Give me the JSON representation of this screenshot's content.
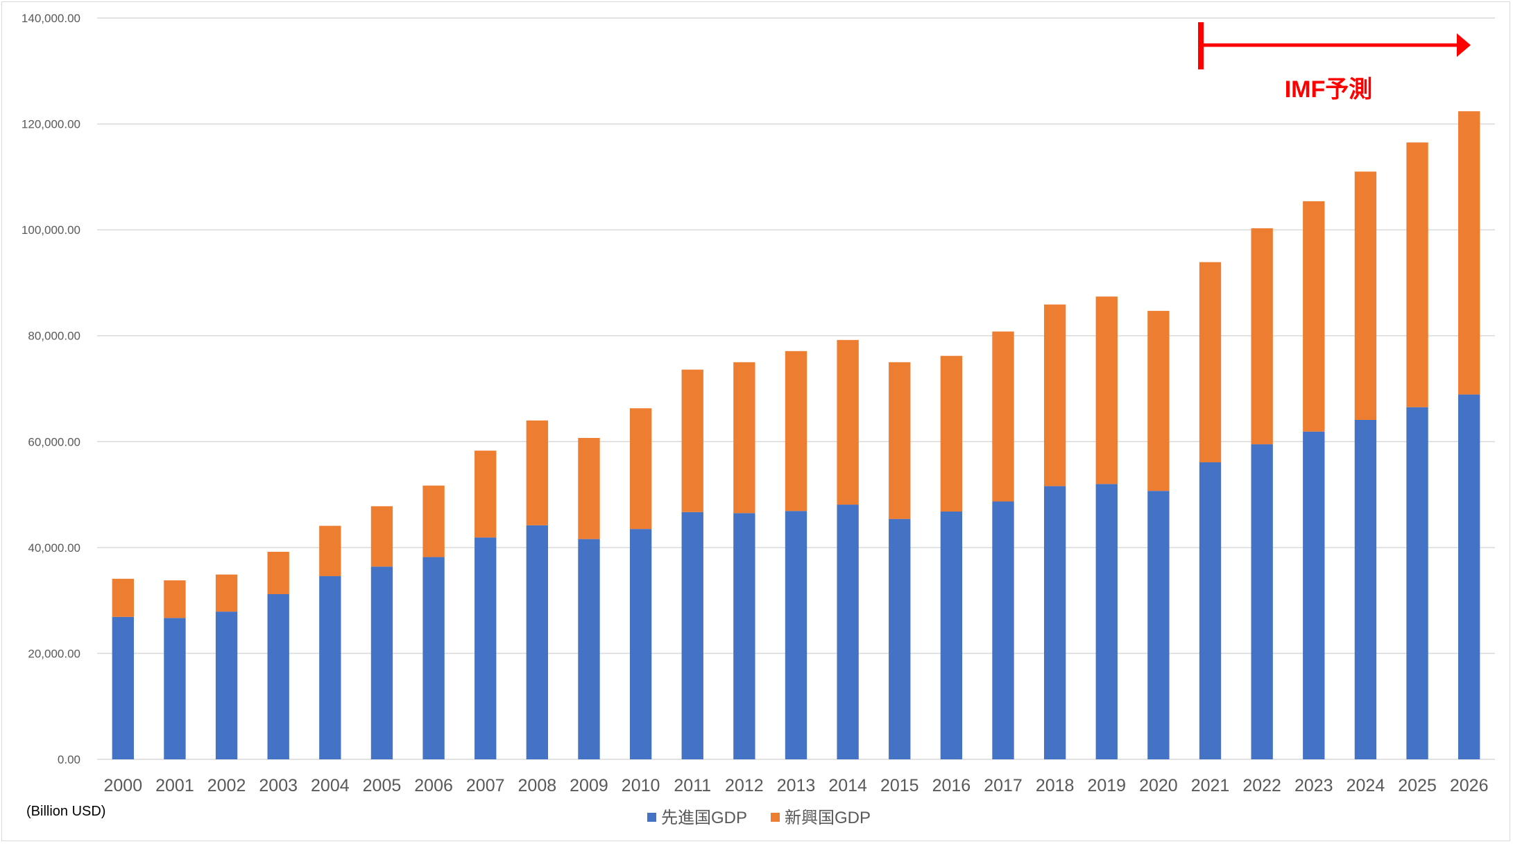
{
  "chart_data": {
    "type": "bar",
    "stacked": true,
    "categories": [
      "2000",
      "2001",
      "2002",
      "2003",
      "2004",
      "2005",
      "2006",
      "2007",
      "2008",
      "2009",
      "2010",
      "2011",
      "2012",
      "2013",
      "2014",
      "2015",
      "2016",
      "2017",
      "2018",
      "2019",
      "2020",
      "2021",
      "2022",
      "2023",
      "2024",
      "2025",
      "2026"
    ],
    "series": [
      {
        "name": "先進国GDP",
        "color": "#4472c4",
        "values": [
          26900,
          26700,
          27900,
          31200,
          34600,
          36400,
          38200,
          41900,
          44200,
          41600,
          43500,
          46700,
          46500,
          46900,
          48100,
          45400,
          46800,
          48700,
          51600,
          52000,
          50700,
          56100,
          59500,
          61900,
          64100,
          66500,
          68900
        ]
      },
      {
        "name": "新興国GDP",
        "color": "#ed7d31",
        "values": [
          7200,
          7100,
          7000,
          8000,
          9500,
          11400,
          13500,
          16400,
          19800,
          19100,
          22800,
          26900,
          28500,
          30200,
          31100,
          29600,
          29400,
          32100,
          34300,
          35400,
          34000,
          37800,
          40800,
          43500,
          46900,
          50000,
          53500
        ]
      }
    ],
    "ylim": [
      0,
      140000
    ],
    "yticks": [
      "0.00",
      "20,000.00",
      "40,000.00",
      "60,000.00",
      "80,000.00",
      "100,000.00",
      "120,000.00",
      "140,000.00"
    ],
    "ytick_values": [
      0,
      20000,
      40000,
      60000,
      80000,
      100000,
      120000,
      140000
    ],
    "unit_label": "(Billion USD)",
    "grid": true,
    "legend_position": "bottom",
    "annotation": {
      "text": "IMF予測",
      "color": "#ff0000",
      "from_category": "2021",
      "to_category": "2026"
    },
    "gridline_color": "#d9d9d9",
    "axis_text_color": "#595959"
  }
}
